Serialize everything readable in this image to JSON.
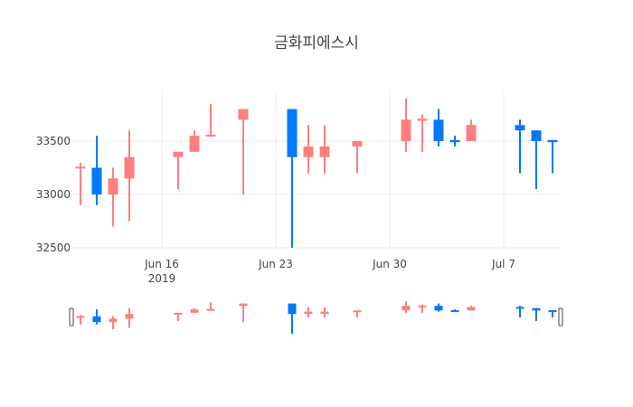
{
  "chart_data": {
    "type": "candlestick",
    "title": "금화피에스시",
    "xlabel": "",
    "ylabel": "",
    "ylim": [
      32500,
      33950
    ],
    "yticks": [
      32500,
      33000,
      33500
    ],
    "xticks": [
      {
        "date": "2019-06-16",
        "label": "Jun 16",
        "sublabel": "2019"
      },
      {
        "date": "2019-06-23",
        "label": "Jun 23",
        "sublabel": ""
      },
      {
        "date": "2019-06-30",
        "label": "Jun 30",
        "sublabel": ""
      },
      {
        "date": "2019-07-07",
        "label": "Jul 7",
        "sublabel": ""
      }
    ],
    "xrange": [
      "2019-06-10",
      "2019-07-10"
    ],
    "grid": true,
    "rangeslider": true,
    "increasing_color": "#FF7F7F",
    "decreasing_color": "#0078FF",
    "data": [
      {
        "date": "2019-06-11",
        "open": 33250,
        "high": 33300,
        "low": 32900,
        "close": 33260
      },
      {
        "date": "2019-06-12",
        "open": 33250,
        "high": 33550,
        "low": 32900,
        "close": 33000
      },
      {
        "date": "2019-06-13",
        "open": 33000,
        "high": 33250,
        "low": 32700,
        "close": 33150
      },
      {
        "date": "2019-06-14",
        "open": 33150,
        "high": 33600,
        "low": 32750,
        "close": 33350
      },
      {
        "date": "2019-06-17",
        "open": 33350,
        "high": 33400,
        "low": 33050,
        "close": 33400
      },
      {
        "date": "2019-06-18",
        "open": 33400,
        "high": 33600,
        "low": 33400,
        "close": 33550
      },
      {
        "date": "2019-06-19",
        "open": 33550,
        "high": 33850,
        "low": 33540,
        "close": 33560
      },
      {
        "date": "2019-06-21",
        "open": 33700,
        "high": 33800,
        "low": 33000,
        "close": 33800
      },
      {
        "date": "2019-06-24",
        "open": 33800,
        "high": 33800,
        "low": 32500,
        "close": 33350
      },
      {
        "date": "2019-06-25",
        "open": 33350,
        "high": 33650,
        "low": 33200,
        "close": 33450
      },
      {
        "date": "2019-06-26",
        "open": 33350,
        "high": 33650,
        "low": 33200,
        "close": 33450
      },
      {
        "date": "2019-06-28",
        "open": 33450,
        "high": 33500,
        "low": 33200,
        "close": 33500
      },
      {
        "date": "2019-07-01",
        "open": 33500,
        "high": 33900,
        "low": 33400,
        "close": 33700
      },
      {
        "date": "2019-07-02",
        "open": 33690,
        "high": 33750,
        "low": 33400,
        "close": 33710
      },
      {
        "date": "2019-07-03",
        "open": 33700,
        "high": 33800,
        "low": 33450,
        "close": 33500
      },
      {
        "date": "2019-07-04",
        "open": 33510,
        "high": 33550,
        "low": 33450,
        "close": 33490
      },
      {
        "date": "2019-07-05",
        "open": 33500,
        "high": 33700,
        "low": 33500,
        "close": 33650
      },
      {
        "date": "2019-07-08",
        "open": 33650,
        "high": 33700,
        "low": 33200,
        "close": 33600
      },
      {
        "date": "2019-07-09",
        "open": 33600,
        "high": 33600,
        "low": 33050,
        "close": 33500
      },
      {
        "date": "2019-07-10",
        "open": 33510,
        "high": 33510,
        "low": 33200,
        "close": 33490
      }
    ]
  }
}
